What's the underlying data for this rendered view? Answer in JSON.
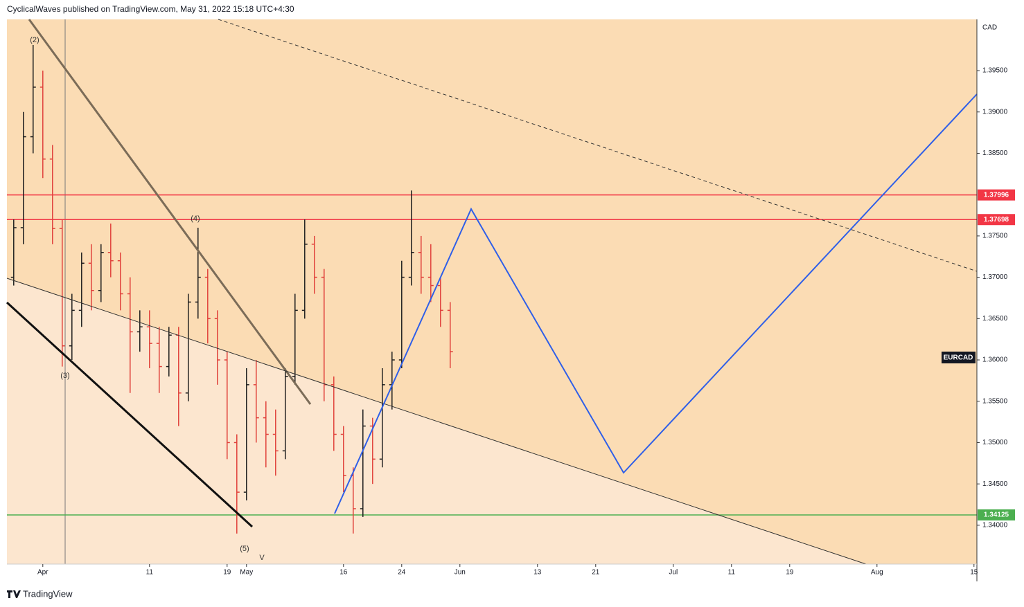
{
  "chart_data": {
    "type": "ohlc",
    "header": "CyclicalWaves published on TradingView.com, May 31, 2022 15:18 UTC+4:30",
    "brand": "TradingView",
    "symbol": "EURCAD",
    "currency": "CAD",
    "x": [
      -3,
      -2,
      -1,
      0,
      1,
      2,
      3,
      4,
      5,
      6,
      7,
      8,
      9,
      10,
      11,
      12,
      13,
      14,
      15,
      16,
      17,
      18,
      19,
      20,
      21,
      22,
      23,
      24,
      25,
      26,
      27,
      28,
      29,
      30,
      31,
      32,
      33,
      34,
      35,
      36,
      37,
      38,
      39,
      40,
      41,
      42
    ],
    "open": [
      1.37,
      1.376,
      1.387,
      1.393,
      1.3843,
      1.3759,
      1.3617,
      1.366,
      1.3717,
      1.3684,
      1.373,
      1.372,
      1.368,
      1.3634,
      1.364,
      1.362,
      1.3592,
      1.363,
      1.356,
      1.367,
      1.37,
      1.365,
      1.36,
      1.35,
      1.344,
      1.357,
      1.353,
      1.351,
      1.349,
      1.358,
      1.366,
      1.374,
      1.37,
      1.357,
      1.351,
      1.346,
      1.342,
      1.352,
      1.348,
      1.357,
      1.36,
      1.37,
      1.373,
      1.37,
      1.369,
      1.366
    ],
    "high": [
      1.377,
      1.39,
      1.3981,
      1.395,
      1.386,
      1.377,
      1.368,
      1.373,
      1.374,
      1.374,
      1.3765,
      1.373,
      1.37,
      1.366,
      1.366,
      1.364,
      1.364,
      1.364,
      1.368,
      1.376,
      1.371,
      1.366,
      1.361,
      1.351,
      1.359,
      1.36,
      1.355,
      1.354,
      1.359,
      1.368,
      1.377,
      1.375,
      1.371,
      1.358,
      1.352,
      1.347,
      1.354,
      1.353,
      1.359,
      1.361,
      1.372,
      1.3805,
      1.375,
      1.374,
      1.37,
      1.367
    ],
    "low": [
      1.369,
      1.374,
      1.385,
      1.382,
      1.374,
      1.3592,
      1.36,
      1.364,
      1.366,
      1.367,
      1.37,
      1.366,
      1.356,
      1.361,
      1.359,
      1.356,
      1.358,
      1.352,
      1.355,
      1.365,
      1.362,
      1.357,
      1.348,
      1.339,
      1.343,
      1.35,
      1.347,
      1.346,
      1.348,
      1.357,
      1.365,
      1.368,
      1.355,
      1.349,
      1.344,
      1.339,
      1.341,
      1.345,
      1.347,
      1.354,
      1.359,
      1.369,
      1.368,
      1.367,
      1.364,
      1.359
    ],
    "close": [
      1.376,
      1.387,
      1.393,
      1.3843,
      1.3759,
      1.3617,
      1.366,
      1.3717,
      1.3684,
      1.373,
      1.372,
      1.368,
      1.3634,
      1.364,
      1.362,
      1.3592,
      1.363,
      1.356,
      1.367,
      1.37,
      1.365,
      1.36,
      1.35,
      1.344,
      1.357,
      1.353,
      1.351,
      1.349,
      1.358,
      1.366,
      1.374,
      1.37,
      1.357,
      1.351,
      1.346,
      1.342,
      1.352,
      1.348,
      1.357,
      1.36,
      1.37,
      1.373,
      1.37,
      1.369,
      1.366,
      1.361
    ],
    "up_color": "#1e1e1e",
    "down_color": "#e0413b",
    "xlim": [
      -3.7,
      96.3
    ],
    "xticks": [
      {
        "value": 0,
        "label": "Apr"
      },
      11,
      19,
      {
        "value": 21,
        "label": "May"
      },
      {
        "value": 31,
        "label": "16"
      },
      {
        "value": 37,
        "label": "24"
      },
      {
        "value": 43,
        "label": "Jun"
      },
      {
        "value": 51,
        "label": "13"
      },
      {
        "value": 57,
        "label": "21"
      },
      {
        "value": 65,
        "label": "Jul"
      },
      {
        "value": 71,
        "label": "11"
      },
      {
        "value": 77,
        "label": "19"
      },
      {
        "value": 86,
        "label": "Aug"
      },
      {
        "value": 96,
        "label": "15"
      }
    ],
    "ylim": [
      1.3353,
      1.4012
    ],
    "yticks": [
      {
        "value": 1.34,
        "label": "1.34000"
      },
      {
        "value": 1.345,
        "label": "1.34500"
      },
      {
        "value": 1.35,
        "label": "1.35000"
      },
      {
        "value": 1.355,
        "label": "1.35500"
      },
      {
        "value": 1.36,
        "label": "1.36000"
      },
      {
        "value": 1.365,
        "label": "1.36500"
      },
      {
        "value": 1.37,
        "label": "1.37000"
      },
      {
        "value": 1.375,
        "label": "1.37500"
      },
      {
        "value": 1.385,
        "label": "1.38500"
      },
      {
        "value": 1.39,
        "label": "1.39000"
      },
      {
        "value": 1.395,
        "label": "1.39500"
      }
    ],
    "levels": [
      {
        "value": 1.37996,
        "color": "#f23645"
      },
      {
        "value": 1.37698,
        "color": "#f23645"
      },
      {
        "value": 1.34125,
        "color": "#4caf50"
      }
    ],
    "annotations": [
      "(2)",
      "(3)",
      "(4)",
      "(5)",
      "V"
    ]
  }
}
